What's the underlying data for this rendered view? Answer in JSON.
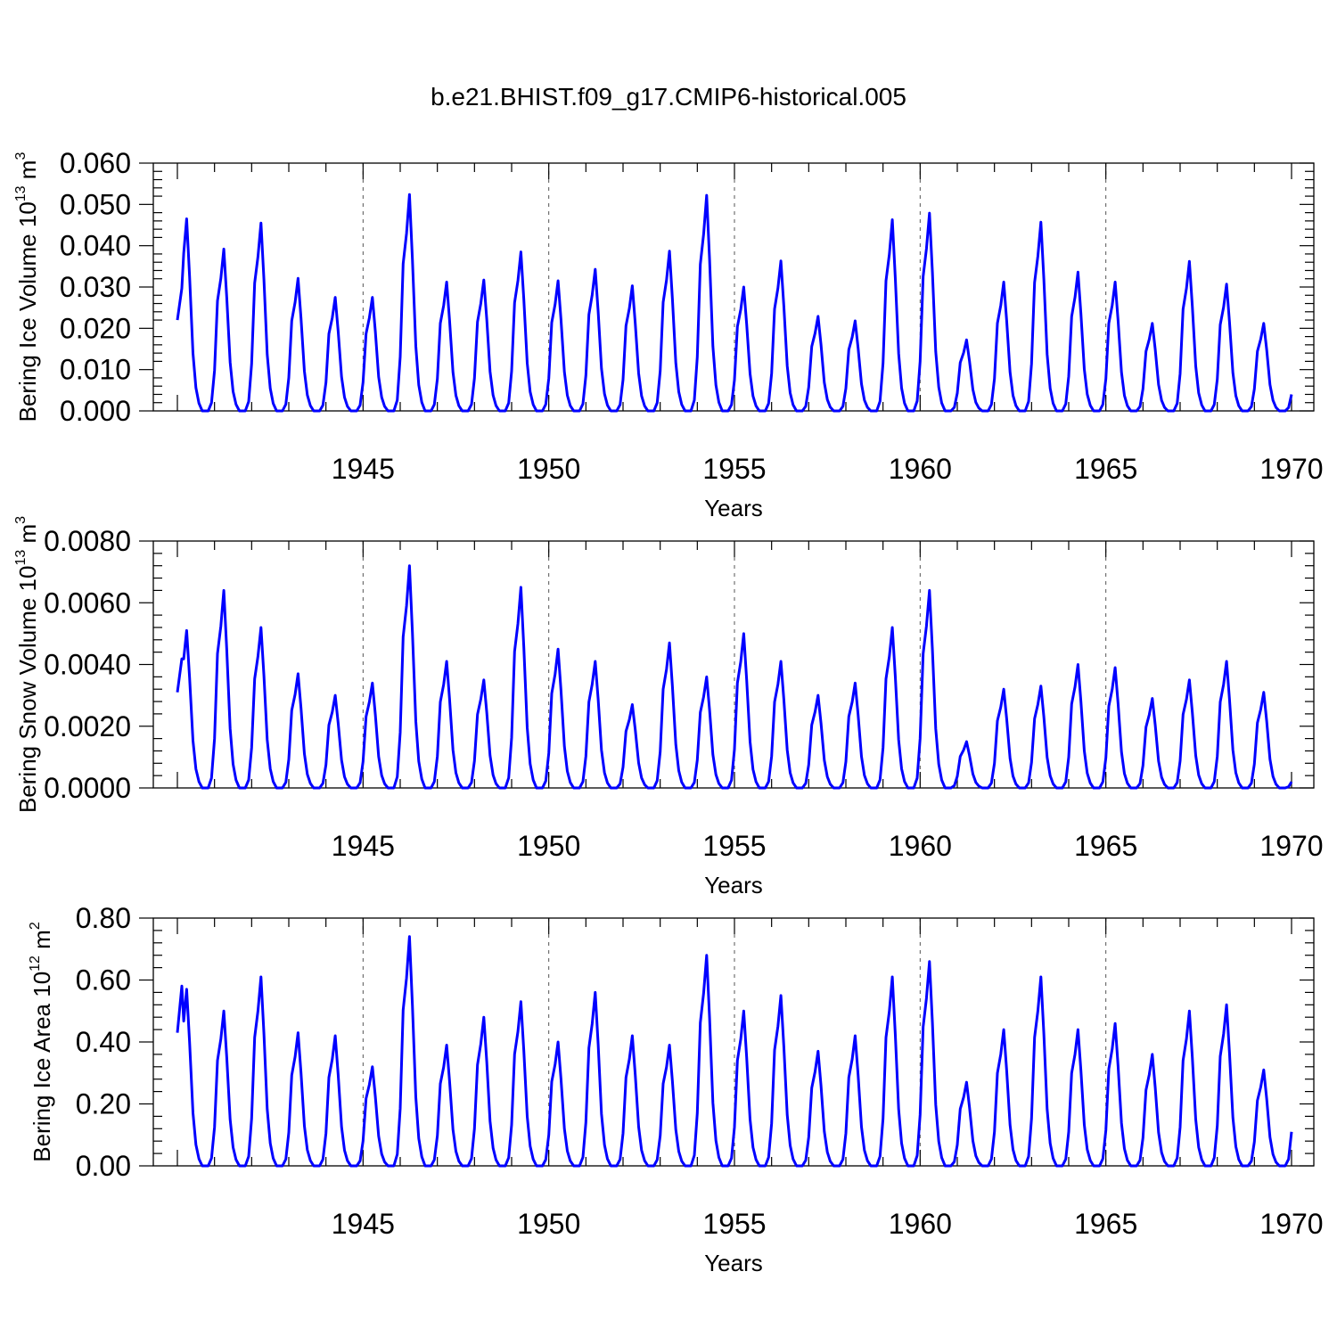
{
  "title": "b.e21.BHIST.f09_g17.CMIP6-historical.005",
  "chart_data": [
    {
      "type": "line",
      "ylabel": "Bering Ice Volume 10",
      "ylabel_sup": "13",
      "ylabel_unit": " m",
      "ylabel_unit_sup": "3",
      "xlabel": "Years",
      "xlim": [
        1940,
        1970
      ],
      "ylim": [
        0,
        0.06
      ],
      "yticks": [
        0,
        0.01,
        0.02,
        0.03,
        0.04,
        0.05,
        0.06
      ],
      "ytick_labels": [
        "0.000",
        "0.010",
        "0.020",
        "0.030",
        "0.040",
        "0.050",
        "0.060"
      ],
      "xticks": [
        1945,
        1950,
        1955,
        1960,
        1965,
        1970
      ],
      "xtick_labels": [
        "1945",
        "1950",
        "1955",
        "1960",
        "1965",
        "1970"
      ],
      "grid_x": [
        1945,
        1950,
        1955,
        1960,
        1965
      ],
      "series": [
        {
          "name": "Bering Ice Volume",
          "color": "#0000ff",
          "peaks": [
            0.0465,
            0.0392,
            0.0455,
            0.0321,
            0.0275,
            0.0275,
            0.0524,
            0.0312,
            0.0317,
            0.0385,
            0.0315,
            0.0343,
            0.0303,
            0.0387,
            0.0522,
            0.03,
            0.0363,
            0.0229,
            0.0218,
            0.0463,
            0.0479,
            0.0172,
            0.0312,
            0.0457,
            0.0336,
            0.0312,
            0.0212,
            0.0362,
            0.0307,
            0.0212
          ],
          "start": 0.022,
          "end": 0.004
        }
      ]
    },
    {
      "type": "line",
      "ylabel": "Bering Snow Volume 10",
      "ylabel_sup": "13",
      "ylabel_unit": " m",
      "ylabel_unit_sup": "3",
      "xlabel": "Years",
      "xlim": [
        1940,
        1970
      ],
      "ylim": [
        0,
        0.008
      ],
      "yticks": [
        0,
        0.002,
        0.004,
        0.006,
        0.008
      ],
      "ytick_labels": [
        "0.0000",
        "0.0020",
        "0.0040",
        "0.0060",
        "0.0080"
      ],
      "xticks": [
        1945,
        1950,
        1955,
        1960,
        1965,
        1970
      ],
      "xtick_labels": [
        "1945",
        "1950",
        "1955",
        "1960",
        "1965",
        "1970"
      ],
      "grid_x": [
        1945,
        1950,
        1955,
        1960,
        1965
      ],
      "series": [
        {
          "name": "Bering Snow Volume",
          "color": "#0000ff",
          "peaks": [
            0.0051,
            0.0064,
            0.0052,
            0.0037,
            0.003,
            0.0034,
            0.0072,
            0.0041,
            0.0035,
            0.0065,
            0.0045,
            0.0041,
            0.0027,
            0.0047,
            0.0036,
            0.005,
            0.0041,
            0.003,
            0.0034,
            0.0052,
            0.0064,
            0.0015,
            0.0032,
            0.0033,
            0.004,
            0.0039,
            0.0029,
            0.0035,
            0.0041,
            0.0031
          ],
          "start": 0.0031,
          "end": 0.0002
        }
      ]
    },
    {
      "type": "line",
      "ylabel": "Bering Ice Area 10",
      "ylabel_sup": "12",
      "ylabel_unit": " m",
      "ylabel_unit_sup": "2",
      "xlabel": "Years",
      "xlim": [
        1940,
        1970
      ],
      "ylim": [
        0,
        0.8
      ],
      "yticks": [
        0,
        0.2,
        0.4,
        0.6,
        0.8
      ],
      "ytick_labels": [
        "0.00",
        "0.20",
        "0.40",
        "0.60",
        "0.80"
      ],
      "xticks": [
        1945,
        1950,
        1955,
        1960,
        1965,
        1970
      ],
      "xtick_labels": [
        "1945",
        "1950",
        "1955",
        "1960",
        "1965",
        "1970"
      ],
      "grid_x": [
        1945,
        1950,
        1955,
        1960,
        1965
      ],
      "series": [
        {
          "name": "Bering Ice Area",
          "color": "#0000ff",
          "peaks": [
            0.57,
            0.5,
            0.61,
            0.43,
            0.42,
            0.32,
            0.74,
            0.39,
            0.48,
            0.53,
            0.4,
            0.56,
            0.42,
            0.39,
            0.68,
            0.5,
            0.55,
            0.37,
            0.42,
            0.61,
            0.66,
            0.27,
            0.44,
            0.61,
            0.44,
            0.46,
            0.36,
            0.5,
            0.52,
            0.31
          ],
          "start": 0.43,
          "end": 0.11
        }
      ]
    }
  ]
}
